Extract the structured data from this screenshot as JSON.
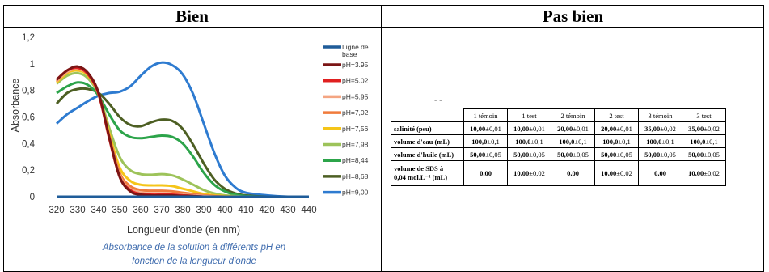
{
  "headers": {
    "left": "Bien",
    "right": "Pas bien"
  },
  "chart_data": {
    "type": "line",
    "title": "",
    "xlabel": "Longueur d'onde (en nm)",
    "ylabel": "Absorbance",
    "xlim": [
      320,
      440
    ],
    "ylim": [
      0,
      1.2
    ],
    "xticks": [
      "320",
      "330",
      "340",
      "350",
      "360",
      "370",
      "380",
      "390",
      "400",
      "410",
      "420",
      "430",
      "440"
    ],
    "yticks": [
      "0",
      "0,2",
      "0,4",
      "0,6",
      "0,8",
      "1",
      "1,2"
    ],
    "grid": false,
    "legend_position": "right",
    "x": [
      320,
      325,
      330,
      335,
      340,
      345,
      350,
      355,
      360,
      365,
      370,
      375,
      380,
      385,
      390,
      395,
      400,
      405,
      410,
      420,
      430,
      440
    ],
    "series": [
      {
        "name": "Ligne de base",
        "color": "#1f5c99",
        "values": [
          0,
          0,
          0,
          0,
          0,
          0,
          0,
          0,
          0,
          0,
          0,
          0,
          0,
          0,
          0,
          0,
          0,
          0,
          0,
          0,
          0,
          0
        ]
      },
      {
        "name": "pH=3.95",
        "color": "#7b1515",
        "values": [
          0.88,
          0.95,
          0.98,
          0.93,
          0.78,
          0.45,
          0.15,
          0.04,
          0.015,
          0.01,
          0.01,
          0.01,
          0.005,
          0.005,
          0,
          0,
          0,
          0,
          0,
          0,
          0,
          0
        ]
      },
      {
        "name": "pH=5.02",
        "color": "#e02020",
        "values": [
          0.88,
          0.95,
          0.97,
          0.92,
          0.77,
          0.44,
          0.15,
          0.05,
          0.02,
          0.015,
          0.015,
          0.015,
          0.01,
          0.005,
          0,
          0,
          0,
          0,
          0,
          0,
          0,
          0
        ]
      },
      {
        "name": "pH=5.95",
        "color": "#f4a582",
        "values": [
          0.87,
          0.94,
          0.96,
          0.92,
          0.77,
          0.45,
          0.16,
          0.06,
          0.03,
          0.025,
          0.025,
          0.02,
          0.015,
          0.01,
          0.005,
          0,
          0,
          0,
          0,
          0,
          0,
          0
        ]
      },
      {
        "name": "pH=7,02",
        "color": "#f07b3c",
        "values": [
          0.87,
          0.94,
          0.96,
          0.92,
          0.77,
          0.46,
          0.18,
          0.08,
          0.05,
          0.045,
          0.045,
          0.04,
          0.03,
          0.02,
          0.01,
          0.005,
          0,
          0,
          0,
          0,
          0,
          0
        ]
      },
      {
        "name": "pH=7,56",
        "color": "#f5c518",
        "values": [
          0.86,
          0.93,
          0.95,
          0.91,
          0.77,
          0.48,
          0.22,
          0.12,
          0.09,
          0.085,
          0.085,
          0.08,
          0.06,
          0.04,
          0.02,
          0.01,
          0.005,
          0,
          0,
          0,
          0,
          0
        ]
      },
      {
        "name": "pH=7,98",
        "color": "#9dc35a",
        "values": [
          0.85,
          0.91,
          0.93,
          0.89,
          0.77,
          0.52,
          0.3,
          0.2,
          0.17,
          0.165,
          0.17,
          0.16,
          0.13,
          0.09,
          0.05,
          0.025,
          0.01,
          0.005,
          0,
          0,
          0,
          0
        ]
      },
      {
        "name": "pH=8,44",
        "color": "#2ca44a",
        "values": [
          0.78,
          0.83,
          0.86,
          0.84,
          0.76,
          0.62,
          0.5,
          0.45,
          0.44,
          0.45,
          0.46,
          0.45,
          0.4,
          0.3,
          0.18,
          0.09,
          0.04,
          0.015,
          0.005,
          0,
          0,
          0
        ]
      },
      {
        "name": "pH=8,68",
        "color": "#4d5f23",
        "values": [
          0.7,
          0.78,
          0.81,
          0.81,
          0.78,
          0.7,
          0.6,
          0.54,
          0.53,
          0.56,
          0.58,
          0.57,
          0.51,
          0.39,
          0.25,
          0.13,
          0.06,
          0.025,
          0.01,
          0,
          0,
          0
        ]
      },
      {
        "name": "pH=9,00",
        "color": "#2e7bd0",
        "values": [
          0.55,
          0.62,
          0.67,
          0.72,
          0.76,
          0.78,
          0.79,
          0.83,
          0.91,
          0.98,
          1.01,
          0.99,
          0.92,
          0.77,
          0.55,
          0.33,
          0.16,
          0.07,
          0.03,
          0.01,
          0,
          0
        ]
      }
    ]
  },
  "legend": {
    "baseline_line1": "Ligne de",
    "baseline_line2": "base"
  },
  "caption": {
    "line1": "Absorbance de la solution à différents pH en",
    "line2": "fonction de la longueur d'onde"
  },
  "table": {
    "dots": "- -",
    "columns": [
      "1 témoin",
      "1 test",
      "2 témoin",
      "2 test",
      "3 témoin",
      "3 test"
    ],
    "rows": [
      {
        "label": "salinité (psu)",
        "cells": [
          [
            "10,00",
            "±0,01"
          ],
          [
            "10,00",
            "±0,01"
          ],
          [
            "20,00",
            "±0,01"
          ],
          [
            "20,00",
            "±0,01"
          ],
          [
            "35,00",
            "±0,02"
          ],
          [
            "35,00",
            "±0,02"
          ]
        ]
      },
      {
        "label": "volume d'eau (mL)",
        "cells": [
          [
            "100,0",
            "±0,1"
          ],
          [
            "100,0",
            "±0,1"
          ],
          [
            "100,0",
            "±0,1"
          ],
          [
            "100,0",
            "±0,1"
          ],
          [
            "100,0",
            "±0,1"
          ],
          [
            "100,0",
            "±0,1"
          ]
        ]
      },
      {
        "label": "volume d'huile (mL)",
        "cells": [
          [
            "50,00",
            "±0,05"
          ],
          [
            "50,00",
            "±0,05"
          ],
          [
            "50,00",
            "±0,05"
          ],
          [
            "50,00",
            "±0,05"
          ],
          [
            "50,00",
            "±0,05"
          ],
          [
            "50,00",
            "±0,05"
          ]
        ]
      },
      {
        "label1": "volume de SDS à",
        "label2": "0,04 mol.L⁻¹ (mL)",
        "cells": [
          [
            "0,00",
            ""
          ],
          [
            "10,00",
            "±0,02"
          ],
          [
            "0,00",
            ""
          ],
          [
            "10,00",
            "±0,02"
          ],
          [
            "0,00",
            ""
          ],
          [
            "10,00",
            "±0,02"
          ]
        ]
      }
    ]
  }
}
